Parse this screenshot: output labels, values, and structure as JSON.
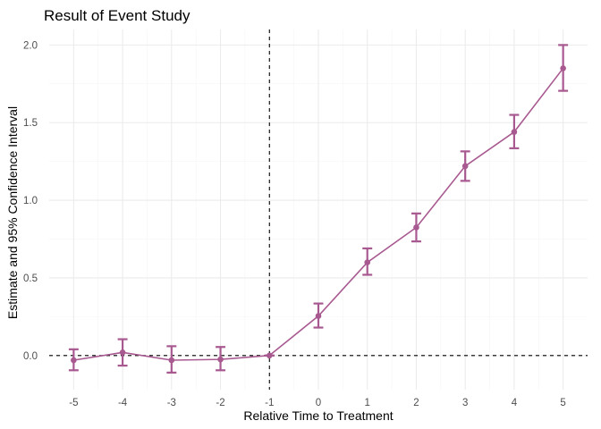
{
  "chart_data": {
    "type": "line",
    "title": "Result of Event Study",
    "xlabel": "Relative Time to Treatment",
    "ylabel": "Estimate and 95% Confidence Interval",
    "x": [
      -5,
      -4,
      -3,
      -2,
      -1,
      0,
      1,
      2,
      3,
      4,
      5
    ],
    "series": [
      {
        "estimate": [
          -0.03,
          0.02,
          -0.03,
          -0.025,
          0.0,
          0.255,
          0.6,
          0.825,
          1.22,
          1.44,
          1.85
        ],
        "ci_lower": [
          -0.095,
          -0.065,
          -0.11,
          -0.095,
          0.0,
          0.18,
          0.52,
          0.735,
          1.125,
          1.335,
          1.705
        ],
        "ci_upper": [
          0.04,
          0.105,
          0.06,
          0.055,
          0.0,
          0.335,
          0.69,
          0.915,
          1.315,
          1.55,
          2.0
        ]
      }
    ],
    "x_ticks": [
      -5,
      -4,
      -3,
      -2,
      -1,
      0,
      1,
      2,
      3,
      4,
      5
    ],
    "x_tick_labels": [
      "-5",
      "-4",
      "-3",
      "-2",
      "-1",
      "0",
      "1",
      "2",
      "3",
      "4",
      "5"
    ],
    "y_ticks": [
      0.0,
      0.5,
      1.0,
      1.5,
      2.0
    ],
    "y_tick_labels": [
      "0.0",
      "0.5",
      "1.0",
      "1.5",
      "2.0"
    ],
    "xlim": [
      -5.5,
      5.5
    ],
    "ylim": [
      -0.22,
      2.1
    ],
    "reference_lines": {
      "vertical_x": -1,
      "horizontal_y": 0,
      "style": "dashed"
    },
    "grid": true,
    "theme": "minimal",
    "colors": {
      "series": "#a85990",
      "reference": "#000000",
      "grid": "#ebebeb",
      "tick_text": "#4d4d4d"
    }
  }
}
